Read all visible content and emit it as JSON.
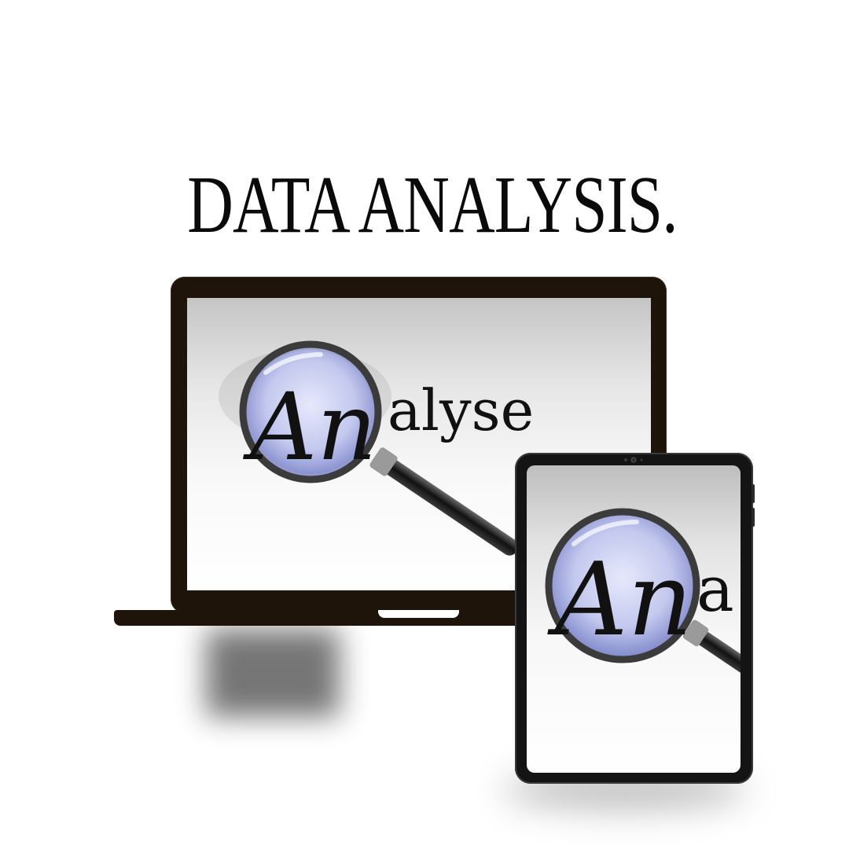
{
  "headline": "DATA ANALYSIS.",
  "artwork": {
    "word": "Analyse",
    "lens_letters": "An",
    "rest_letters": "alyse"
  },
  "devices": {
    "laptop": "laptop",
    "tablet": "tablet"
  },
  "colors": {
    "frame": "#1e140a",
    "tablet_frame": "#141414",
    "lens": "#b9bfe6",
    "lens_rim": "#3a3a3a",
    "text": "#111111"
  }
}
